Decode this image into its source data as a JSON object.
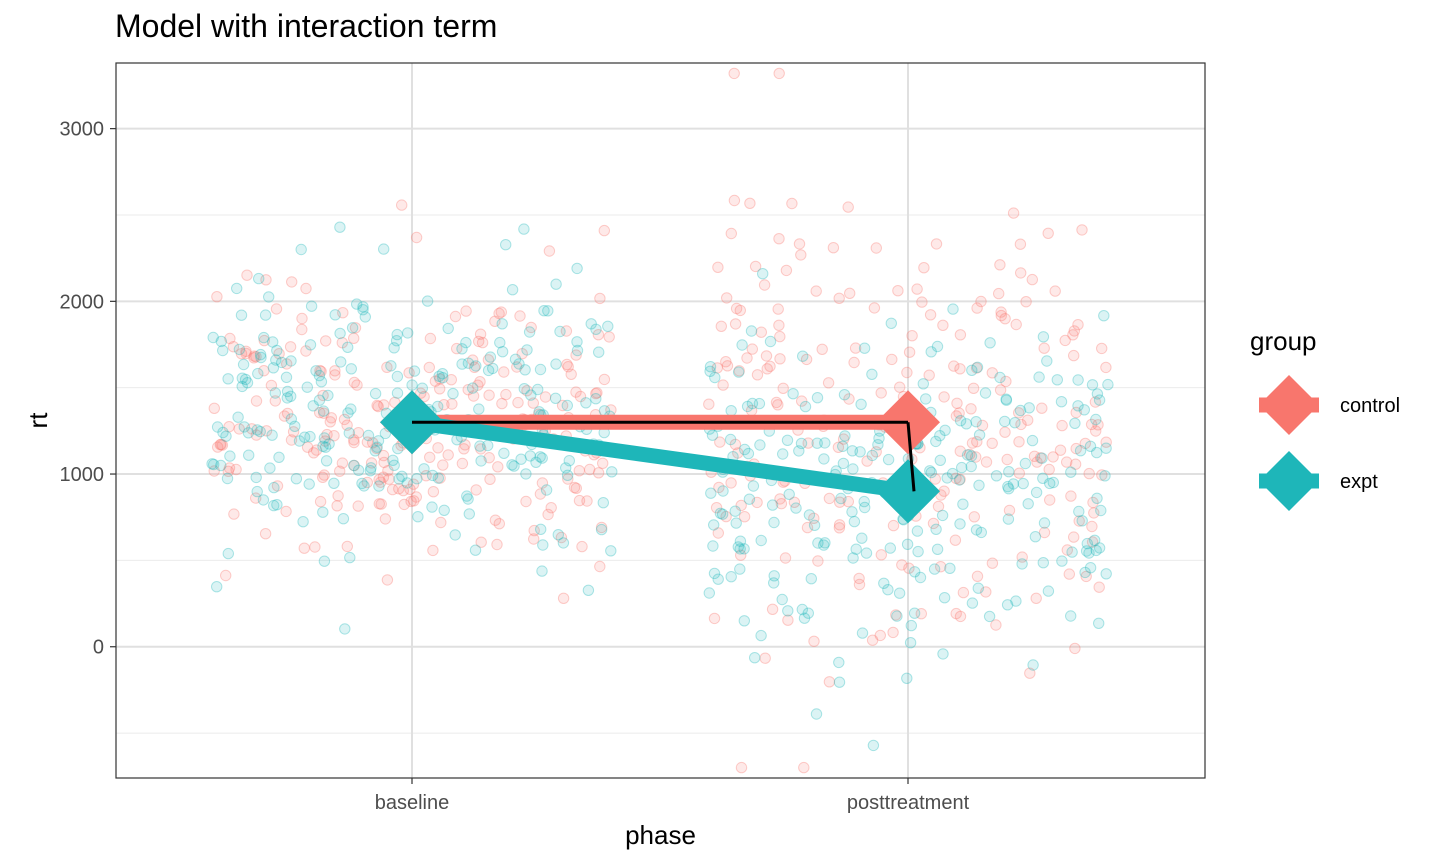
{
  "chart_data": {
    "type": "scatter",
    "title": "Model with interaction term",
    "xlabel": "phase",
    "ylabel": "rt",
    "categories": [
      "baseline",
      "posttreatment"
    ],
    "ylim": [
      -760,
      3380
    ],
    "yticks": [
      0,
      1000,
      2000,
      3000
    ],
    "yminor": [
      -500,
      500,
      1500,
      2500
    ],
    "grid": true,
    "legend": {
      "title": "group",
      "position": "right"
    },
    "series": [
      {
        "name": "control",
        "color": "#F8766D",
        "points": {
          "baseline": {
            "mean": 1300,
            "sd": 420,
            "n": 250
          },
          "posttreatment": {
            "mean": 1300,
            "sd": 620,
            "n": 250
          }
        },
        "model_means": [
          1300,
          1300
        ]
      },
      {
        "name": "expt",
        "color": "#1EB6B9",
        "points": {
          "baseline": {
            "mean": 1300,
            "sd": 420,
            "n": 250
          },
          "posttreatment": {
            "mean": 900,
            "sd": 520,
            "n": 250
          }
        },
        "model_means": [
          1300,
          900
        ]
      }
    ],
    "annotations": {
      "segments": [
        {
          "x": [
            "baseline",
            "posttreatment"
          ],
          "y": [
            1300,
            1300
          ],
          "color": "#000000"
        },
        {
          "x": [
            "posttreatment",
            "posttreatment"
          ],
          "y": [
            1300,
            900
          ],
          "color": "#000000"
        }
      ]
    }
  }
}
